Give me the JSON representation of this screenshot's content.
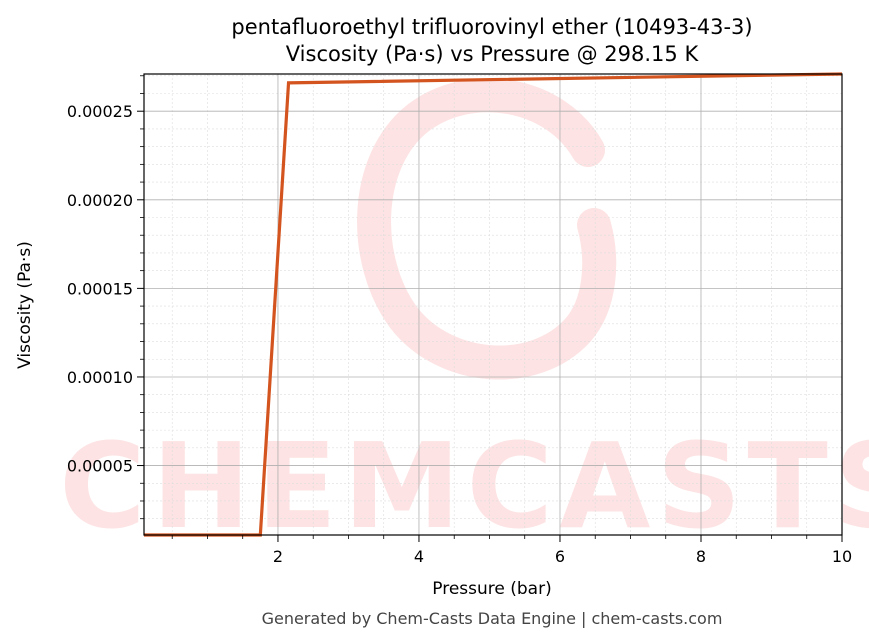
{
  "colors": {
    "line": "#d4541f",
    "grid_major": "#b0b0b0",
    "grid_minor": "#dddddd",
    "watermark": "#fde3e3",
    "footer_text": "#444444"
  },
  "watermark": {
    "text": "CHEMCASTS"
  },
  "footer": {
    "text": "Generated by Chem-Casts Data Engine | chem-casts.com"
  },
  "chart_data": {
    "type": "line",
    "title": "pentafluoroethyl trifluorovinyl ether (10493-43-3)",
    "subtitle": "Viscosity (Pa·s) vs Pressure @ 298.15 K",
    "xlabel": "Pressure (bar)",
    "ylabel": "Viscosity (Pa·s)",
    "xlim": [
      0.1,
      10
    ],
    "ylim": [
      1.08e-05,
      0.000271
    ],
    "xticks": [
      2,
      4,
      6,
      8,
      10
    ],
    "xtick_labels": [
      "2",
      "4",
      "6",
      "8",
      "10"
    ],
    "yticks": [
      5e-05,
      0.0001,
      0.00015,
      0.0002,
      0.00025
    ],
    "ytick_labels": [
      "0.00005",
      "0.00010",
      "0.00015",
      "0.00020",
      "0.00025"
    ],
    "grid": true,
    "series": [
      {
        "x": [
          0.1,
          1.75,
          2.15,
          10
        ],
        "y": [
          1.08e-05,
          1.08e-05,
          0.000266,
          0.000271
        ]
      }
    ]
  }
}
